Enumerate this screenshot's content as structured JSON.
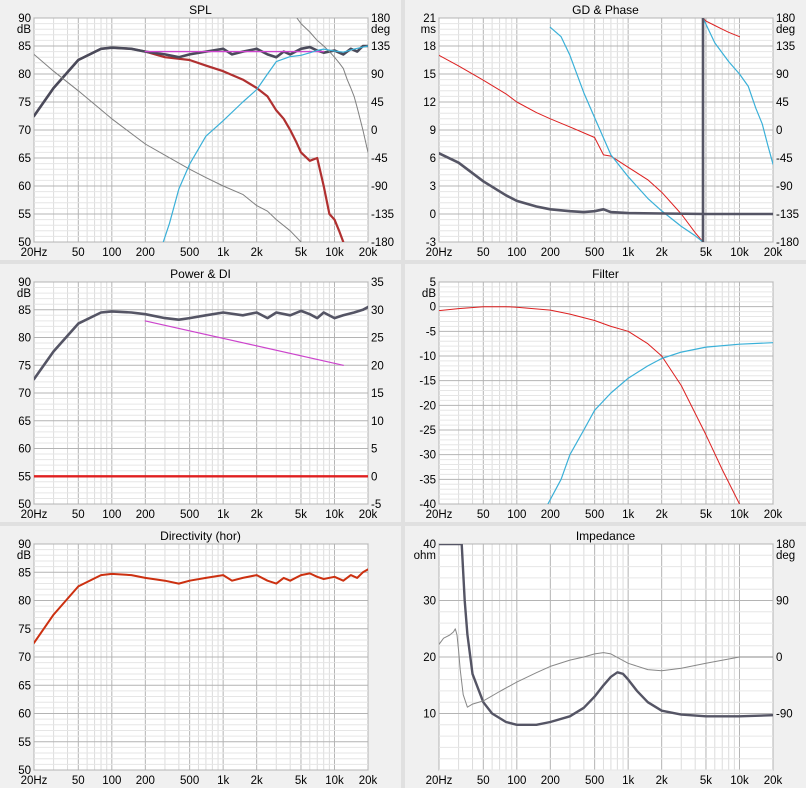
{
  "chart_data": [
    {
      "id": "spl",
      "type": "line",
      "title": "SPL",
      "ylabel": "dB",
      "y2label": "deg",
      "xlim": [
        20,
        20000
      ],
      "ylim": [
        50,
        90
      ],
      "y2lim": [
        -180,
        180
      ],
      "x_ticks": [
        "20Hz",
        "50",
        "100",
        "200",
        "500",
        "1k",
        "2k",
        "5k",
        "10k",
        "20k"
      ],
      "y_ticks": [
        "50",
        "55",
        "60",
        "65",
        "70",
        "75",
        "80",
        "85",
        "90"
      ],
      "y2_ticks": [
        "-180",
        "-135",
        "-90",
        "-45",
        "0",
        "45",
        "90",
        "135",
        "180"
      ],
      "grid": true,
      "series": [
        {
          "color": "#b03030",
          "axis": "left",
          "width": 2.2,
          "x": [
            20,
            30,
            50,
            80,
            100,
            150,
            200,
            300,
            500,
            700,
            1000,
            1500,
            2000,
            2500,
            3000,
            3500,
            4000,
            4500,
            5000,
            6000,
            7000,
            8000,
            9000,
            10000,
            11000,
            12000
          ],
          "y": [
            72.5,
            77.5,
            82.5,
            84.5,
            84.7,
            84.5,
            84.0,
            83.0,
            82.5,
            81.5,
            80.5,
            79.0,
            77.5,
            76.0,
            73.5,
            72.0,
            70.0,
            68.0,
            66.0,
            64.5,
            65.0,
            60.0,
            55.0,
            54.0,
            52.0,
            50.0
          ]
        },
        {
          "color": "#4a4a5a",
          "axis": "left",
          "width": 2.6,
          "x": [
            20,
            30,
            50,
            80,
            100,
            150,
            200,
            300,
            400,
            500,
            700,
            1000,
            1200,
            1500,
            2000,
            2500,
            3000,
            3500,
            4000,
            5000,
            6000,
            7000,
            8000,
            10000,
            12000,
            14000,
            16000,
            18000,
            20000
          ],
          "y": [
            72.5,
            77.5,
            82.5,
            84.5,
            84.7,
            84.5,
            84.0,
            83.5,
            83.0,
            83.5,
            84.0,
            84.5,
            83.5,
            84.0,
            84.5,
            83.5,
            83.0,
            84.0,
            83.5,
            84.5,
            84.8,
            84.2,
            83.8,
            84.2,
            83.5,
            84.5,
            84.0,
            85.0,
            85.0
          ]
        },
        {
          "color": "#cc44cc",
          "axis": "left",
          "width": 1.4,
          "x": [
            200,
            300,
            500,
            1000,
            2000,
            4000,
            6000,
            8000
          ],
          "y": [
            84.0,
            84.0,
            84.0,
            84.0,
            84.0,
            84.0,
            84.0,
            84.0
          ]
        },
        {
          "color": "#808080",
          "axis": "left",
          "width": 1.0,
          "x": [
            20,
            30,
            50,
            100,
            200,
            300,
            500,
            700,
            1000,
            1500,
            2000,
            2500,
            3000,
            4000,
            5000
          ],
          "y": [
            83.5,
            80.5,
            77.0,
            72.0,
            67.5,
            65.5,
            63.0,
            61.5,
            60.0,
            58.5,
            56.5,
            55.5,
            54.0,
            52.0,
            50.0
          ]
        },
        {
          "color": "#808080",
          "axis": "left",
          "width": 1.0,
          "x": [
            4600,
            5000,
            6000,
            7000,
            8000,
            9000,
            10000,
            11000,
            12000,
            13000,
            14000,
            15000,
            16000,
            18000,
            20000
          ],
          "y": [
            90,
            89.0,
            87.5,
            86.0,
            85.0,
            84.0,
            83.0,
            82.0,
            81.0,
            79.0,
            77.5,
            76.0,
            74.0,
            70.0,
            66.0
          ]
        },
        {
          "color": "#3ab0d8",
          "axis": "right",
          "width": 1.2,
          "x": [
            290,
            330,
            400,
            500,
            700,
            1000,
            1500,
            2000,
            2500,
            3000,
            4000,
            5000,
            6000,
            7000,
            8000,
            10000,
            12000,
            15000,
            20000
          ],
          "y": [
            -180,
            -150,
            -95,
            -55,
            -10,
            15,
            45,
            65,
            90,
            110,
            118,
            120,
            124,
            128,
            130,
            127,
            125,
            130,
            135
          ]
        }
      ]
    },
    {
      "id": "gd-phase",
      "type": "line",
      "title": "GD & Phase",
      "ylabel": "ms",
      "y2label": "deg",
      "xlim": [
        20,
        20000
      ],
      "ylim": [
        -3,
        21
      ],
      "y2lim": [
        -180,
        180
      ],
      "x_ticks": [
        "20Hz",
        "50",
        "100",
        "200",
        "500",
        "1k",
        "2k",
        "5k",
        "10k",
        "20k"
      ],
      "y_ticks": [
        "-3",
        "0",
        "3",
        "6",
        "9",
        "12",
        "15",
        "18",
        "21"
      ],
      "y2_ticks": [
        "-180",
        "-135",
        "-90",
        "-45",
        "0",
        "45",
        "90",
        "135",
        "180"
      ],
      "grid": true,
      "series": [
        {
          "color": "#dd2020",
          "axis": "right",
          "width": 1.0,
          "x": [
            20,
            30,
            50,
            80,
            100,
            150,
            200,
            300,
            500,
            600,
            700,
            1000,
            1500,
            2000,
            3000,
            4000,
            4700
          ],
          "y": [
            120,
            103,
            80,
            58,
            45,
            28,
            18,
            5,
            -12,
            -40,
            -42,
            -60,
            -80,
            -100,
            -135,
            -165,
            -180
          ]
        },
        {
          "color": "#dd2020",
          "axis": "right",
          "width": 1.0,
          "x": [
            4700,
            5000,
            6000,
            7000,
            8000,
            10000
          ],
          "y": [
            180,
            175,
            168,
            162,
            157,
            150
          ]
        },
        {
          "color": "#3ab0d8",
          "axis": "right",
          "width": 1.2,
          "x": [
            200,
            250,
            300,
            400,
            500,
            700,
            1000,
            1500,
            2000,
            3000,
            4000,
            4700
          ],
          "y": [
            165,
            150,
            120,
            60,
            20,
            -40,
            -75,
            -110,
            -130,
            -155,
            -170,
            -180
          ]
        },
        {
          "color": "#3ab0d8",
          "axis": "right",
          "width": 1.2,
          "x": [
            4700,
            6000,
            8000,
            10000,
            12000,
            14000,
            16000,
            18000,
            20000
          ],
          "y": [
            180,
            140,
            110,
            90,
            70,
            35,
            10,
            -25,
            -55
          ]
        },
        {
          "color": "#555565",
          "axis": "left",
          "width": 2.6,
          "x": [
            20,
            30,
            50,
            80,
            100,
            150,
            200,
            300,
            400,
            500,
            600,
            700,
            1000,
            2000,
            5000,
            10000,
            20000
          ],
          "y": [
            6.5,
            5.5,
            3.5,
            2.0,
            1.4,
            0.8,
            0.5,
            0.3,
            0.2,
            0.3,
            0.5,
            0.2,
            0.1,
            0.05,
            0,
            0,
            0
          ]
        },
        {
          "color": "#555565",
          "axis": "left",
          "width": 2.6,
          "x": [
            4700,
            4700
          ],
          "y": [
            -3,
            21
          ]
        }
      ]
    },
    {
      "id": "power-di",
      "type": "line",
      "title": "Power & DI",
      "ylabel": "dB",
      "xlim": [
        20,
        20000
      ],
      "ylim": [
        50,
        90
      ],
      "y2lim": [
        -5,
        35
      ],
      "x_ticks": [
        "20Hz",
        "50",
        "100",
        "200",
        "500",
        "1k",
        "2k",
        "5k",
        "10k",
        "20k"
      ],
      "y_ticks": [
        "50",
        "55",
        "60",
        "65",
        "70",
        "75",
        "80",
        "85",
        "90"
      ],
      "y2_ticks": [
        "-5",
        "0",
        "5",
        "10",
        "15",
        "20",
        "25",
        "30",
        "35"
      ],
      "grid": true,
      "series": [
        {
          "color": "#555565",
          "axis": "left",
          "width": 2.6,
          "x": [
            20,
            30,
            50,
            80,
            100,
            150,
            200,
            300,
            400,
            500,
            700,
            1000,
            1500,
            2000,
            2500,
            3000,
            4000,
            5000,
            6000,
            7000,
            8000,
            10000,
            12000,
            15000,
            18000,
            20000
          ],
          "y": [
            72.5,
            77.5,
            82.5,
            84.5,
            84.7,
            84.5,
            84.2,
            83.5,
            83.2,
            83.5,
            84.0,
            84.5,
            84.0,
            84.5,
            83.5,
            84.5,
            84.0,
            84.8,
            84.2,
            83.5,
            84.5,
            83.5,
            84.0,
            84.5,
            85.0,
            85.5
          ]
        },
        {
          "color": "#cc44cc",
          "axis": "left",
          "width": 1.2,
          "x": [
            200,
            12000
          ],
          "y": [
            83.0,
            75.0
          ]
        },
        {
          "color": "#e02020",
          "axis": "right",
          "width": 2.4,
          "x": [
            20,
            20000
          ],
          "y": [
            0,
            0
          ]
        }
      ]
    },
    {
      "id": "filter",
      "type": "line",
      "title": "Filter",
      "ylabel": "dB",
      "xlim": [
        20,
        20000
      ],
      "ylim": [
        -40,
        5
      ],
      "x_ticks": [
        "20Hz",
        "50",
        "100",
        "200",
        "500",
        "1k",
        "2k",
        "5k",
        "10k",
        "20k"
      ],
      "y_ticks": [
        "-40",
        "-35",
        "-30",
        "-25",
        "-20",
        "-15",
        "-10",
        "-5",
        "0",
        "5"
      ],
      "grid": true,
      "series": [
        {
          "color": "#dd2020",
          "axis": "left",
          "width": 1.0,
          "x": [
            20,
            30,
            50,
            80,
            100,
            200,
            300,
            500,
            700,
            1000,
            1500,
            2000,
            3000,
            5000,
            7000,
            10000
          ],
          "y": [
            -0.8,
            -0.4,
            0,
            0,
            -0.1,
            -0.7,
            -1.5,
            -2.8,
            -4.0,
            -5.0,
            -7.5,
            -10.0,
            -16.0,
            -26.0,
            -33.0,
            -40.0
          ]
        },
        {
          "color": "#3ab0d8",
          "axis": "left",
          "width": 1.2,
          "x": [
            190,
            250,
            300,
            400,
            500,
            700,
            1000,
            1500,
            2000,
            3000,
            5000,
            10000,
            20000
          ],
          "y": [
            -40,
            -35,
            -30,
            -25,
            -21,
            -17.5,
            -14.5,
            -12,
            -10.5,
            -9.2,
            -8.2,
            -7.6,
            -7.3
          ]
        }
      ]
    },
    {
      "id": "directivity",
      "type": "line",
      "title": "Directivity (hor)",
      "ylabel": "dB",
      "xlim": [
        20,
        20000
      ],
      "ylim": [
        50,
        90
      ],
      "x_ticks": [
        "20Hz",
        "50",
        "100",
        "200",
        "500",
        "1k",
        "2k",
        "5k",
        "10k",
        "20k"
      ],
      "y_ticks": [
        "50",
        "55",
        "60",
        "65",
        "70",
        "75",
        "80",
        "85",
        "90"
      ],
      "grid": true,
      "series": [
        {
          "color": "#cc3010",
          "axis": "left",
          "width": 2.0,
          "x": [
            20,
            30,
            50,
            80,
            100,
            150,
            200,
            300,
            400,
            500,
            700,
            1000,
            1200,
            1500,
            2000,
            2500,
            3000,
            3500,
            4000,
            5000,
            6000,
            7000,
            8000,
            10000,
            12000,
            14000,
            16000,
            18000,
            20000
          ],
          "y": [
            72.5,
            77.5,
            82.5,
            84.5,
            84.7,
            84.5,
            84.0,
            83.5,
            83.0,
            83.5,
            84.0,
            84.5,
            83.5,
            84.0,
            84.5,
            83.5,
            83.0,
            84.0,
            83.5,
            84.5,
            84.8,
            84.2,
            83.8,
            84.2,
            83.5,
            84.5,
            84.0,
            85.0,
            85.5
          ]
        }
      ]
    },
    {
      "id": "impedance",
      "type": "line",
      "title": "Impedance",
      "ylabel": "ohm",
      "y2label": "deg",
      "xlim": [
        20,
        20000
      ],
      "ylim": [
        0,
        40
      ],
      "y2lim": [
        -180,
        180
      ],
      "x_ticks": [
        "20Hz",
        "50",
        "100",
        "200",
        "500",
        "1k",
        "2k",
        "5k",
        "10k",
        "20k"
      ],
      "y_ticks": [
        "10",
        "20",
        "30",
        "40"
      ],
      "y2_ticks": [
        "-90",
        "0",
        "90",
        "180"
      ],
      "grid": true,
      "series": [
        {
          "color": "#555565",
          "axis": "left",
          "width": 2.4,
          "x": [
            20,
            24,
            27,
            29,
            30,
            31,
            32,
            34,
            36,
            40,
            50,
            60,
            80,
            100,
            150,
            200,
            300,
            400,
            500,
            600,
            700,
            800,
            900,
            1000,
            1200,
            1500,
            2000,
            3000,
            5000,
            10000,
            20000
          ],
          "y": [
            40,
            40,
            40,
            40,
            40,
            40,
            40,
            30,
            24,
            17,
            12,
            10,
            8.5,
            8,
            8,
            8.5,
            9.5,
            11,
            13,
            15,
            16.5,
            17.3,
            17,
            16,
            14,
            12,
            10.5,
            9.8,
            9.5,
            9.5,
            9.7
          ]
        },
        {
          "color": "#888888",
          "axis": "right",
          "width": 1.0,
          "x": [
            20,
            22,
            25,
            27,
            28,
            29,
            30,
            31,
            33,
            36,
            40,
            50,
            70,
            100,
            150,
            200,
            300,
            400,
            500,
            600,
            700,
            1000,
            1500,
            2000,
            3000,
            5000,
            10000,
            20000
          ],
          "y": [
            20,
            30,
            35,
            40,
            45,
            35,
            10,
            -20,
            -60,
            -80,
            -75,
            -70,
            -55,
            -40,
            -25,
            -15,
            -5,
            0,
            5,
            7,
            5,
            -10,
            -20,
            -22,
            -18,
            -10,
            0,
            0
          ]
        }
      ]
    }
  ]
}
